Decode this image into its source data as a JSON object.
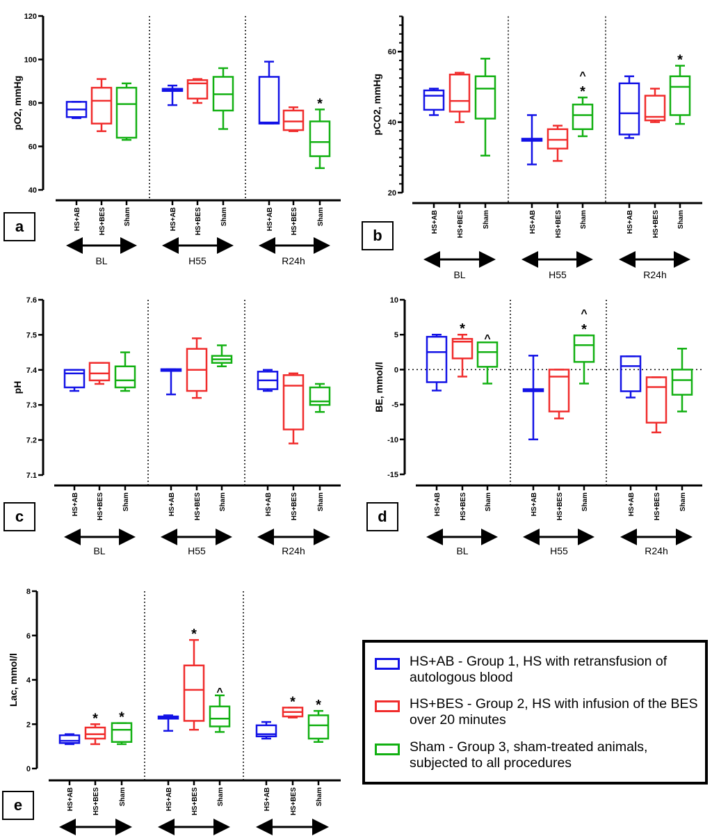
{
  "colors": {
    "HS+AB": "#1212e6",
    "HS+BES": "#f02c2c",
    "Sham": "#12b012",
    "axis": "#000000"
  },
  "chart_data": [
    {
      "type": "box",
      "panel": "a",
      "ylabel": "pO2, mmHg",
      "ylim": [
        40,
        120
      ],
      "yticks": [
        40,
        60,
        80,
        100,
        120
      ],
      "categories": [
        "HS+AB",
        "HS+BES",
        "Sham"
      ],
      "groups": [
        "BL",
        "H55",
        "R24h"
      ],
      "boxes": [
        {
          "group": "BL",
          "category": "HS+AB",
          "stats": [
            73,
            73.5,
            77,
            80.5,
            80.5
          ],
          "mark": ""
        },
        {
          "group": "BL",
          "category": "HS+BES",
          "stats": [
            67,
            70.5,
            81,
            87,
            91
          ],
          "mark": ""
        },
        {
          "group": "BL",
          "category": "Sham",
          "stats": [
            63,
            64,
            79.5,
            87,
            89
          ],
          "mark": ""
        },
        {
          "group": "H55",
          "category": "HS+AB",
          "stats": [
            79,
            85.5,
            86,
            86.5,
            88
          ],
          "mark": ""
        },
        {
          "group": "H55",
          "category": "HS+BES",
          "stats": [
            80,
            82,
            89,
            90.5,
            91
          ],
          "mark": ""
        },
        {
          "group": "H55",
          "category": "Sham",
          "stats": [
            68,
            76.5,
            84,
            92,
            96
          ],
          "mark": ""
        },
        {
          "group": "R24h",
          "category": "HS+AB",
          "stats": [
            70.5,
            70.5,
            71,
            92,
            99
          ],
          "mark": ""
        },
        {
          "group": "R24h",
          "category": "HS+BES",
          "stats": [
            67,
            67.5,
            71.5,
            76.5,
            78
          ],
          "mark": ""
        },
        {
          "group": "R24h",
          "category": "Sham",
          "stats": [
            50,
            55.5,
            62,
            71.5,
            77
          ],
          "mark": "*"
        }
      ]
    },
    {
      "type": "box",
      "panel": "b",
      "ylabel": "pCO2, mmHg",
      "ylim": [
        20,
        70
      ],
      "yticks": [
        20,
        40,
        60
      ],
      "categories": [
        "HS+AB",
        "HS+BES",
        "Sham"
      ],
      "groups": [
        "BL",
        "H55",
        "R24h"
      ],
      "boxes": [
        {
          "group": "BL",
          "category": "HS+AB",
          "stats": [
            42,
            43.5,
            47.5,
            49,
            49.5
          ],
          "mark": ""
        },
        {
          "group": "BL",
          "category": "HS+BES",
          "stats": [
            40,
            43,
            46,
            53.5,
            54
          ],
          "mark": ""
        },
        {
          "group": "BL",
          "category": "Sham",
          "stats": [
            30.5,
            41,
            49.5,
            53,
            58
          ],
          "mark": ""
        },
        {
          "group": "H55",
          "category": "HS+AB",
          "stats": [
            28,
            34.7,
            35,
            35.3,
            42
          ],
          "mark": ""
        },
        {
          "group": "H55",
          "category": "HS+BES",
          "stats": [
            29,
            32.5,
            35,
            38,
            39
          ],
          "mark": ""
        },
        {
          "group": "H55",
          "category": "Sham",
          "stats": [
            36,
            38,
            42,
            45,
            47
          ],
          "mark": "^*"
        },
        {
          "group": "R24h",
          "category": "HS+AB",
          "stats": [
            35.5,
            36.5,
            42.5,
            51,
            53
          ],
          "mark": ""
        },
        {
          "group": "R24h",
          "category": "HS+BES",
          "stats": [
            40,
            40.5,
            41.5,
            47.5,
            49.5
          ],
          "mark": ""
        },
        {
          "group": "R24h",
          "category": "Sham",
          "stats": [
            39.5,
            42,
            50,
            53,
            56
          ],
          "mark": "*"
        }
      ]
    },
    {
      "type": "box",
      "panel": "c",
      "ylabel": "pH",
      "ylim": [
        7.1,
        7.6
      ],
      "yticks": [
        7.1,
        7.2,
        7.3,
        7.4,
        7.5,
        7.6
      ],
      "categories": [
        "HS+AB",
        "HS+BES",
        "Sham"
      ],
      "groups": [
        "BL",
        "H55",
        "R24h"
      ],
      "boxes": [
        {
          "group": "BL",
          "category": "HS+AB",
          "stats": [
            7.34,
            7.35,
            7.39,
            7.4,
            7.4
          ],
          "mark": ""
        },
        {
          "group": "BL",
          "category": "HS+BES",
          "stats": [
            7.36,
            7.37,
            7.39,
            7.42,
            7.42
          ],
          "mark": ""
        },
        {
          "group": "BL",
          "category": "Sham",
          "stats": [
            7.34,
            7.35,
            7.37,
            7.41,
            7.45
          ],
          "mark": ""
        },
        {
          "group": "H55",
          "category": "HS+AB",
          "stats": [
            7.33,
            7.397,
            7.4,
            7.402,
            7.402
          ],
          "mark": ""
        },
        {
          "group": "H55",
          "category": "HS+BES",
          "stats": [
            7.32,
            7.34,
            7.4,
            7.46,
            7.49
          ],
          "mark": ""
        },
        {
          "group": "H55",
          "category": "Sham",
          "stats": [
            7.41,
            7.42,
            7.43,
            7.44,
            7.47
          ],
          "mark": ""
        },
        {
          "group": "R24h",
          "category": "HS+AB",
          "stats": [
            7.34,
            7.345,
            7.37,
            7.395,
            7.4
          ],
          "mark": ""
        },
        {
          "group": "R24h",
          "category": "HS+BES",
          "stats": [
            7.19,
            7.23,
            7.355,
            7.385,
            7.39
          ],
          "mark": ""
        },
        {
          "group": "R24h",
          "category": "Sham",
          "stats": [
            7.28,
            7.3,
            7.31,
            7.35,
            7.36
          ],
          "mark": ""
        }
      ]
    },
    {
      "type": "box",
      "panel": "d",
      "ylabel": "BE, mmol/l",
      "ylim": [
        -15,
        10
      ],
      "yticks": [
        -15,
        -10,
        -5,
        0,
        5,
        10
      ],
      "reference_line": 0,
      "categories": [
        "HS+AB",
        "HS+BES",
        "Sham"
      ],
      "groups": [
        "BL",
        "H55",
        "R24h"
      ],
      "boxes": [
        {
          "group": "BL",
          "category": "HS+AB",
          "stats": [
            -3,
            -1.8,
            2.5,
            4.7,
            5
          ],
          "mark": ""
        },
        {
          "group": "BL",
          "category": "HS+BES",
          "stats": [
            -1,
            1.6,
            4,
            4.4,
            5
          ],
          "mark": "*"
        },
        {
          "group": "BL",
          "category": "Sham",
          "stats": [
            -2,
            0.4,
            2.5,
            3.9,
            3.9
          ],
          "mark": "^"
        },
        {
          "group": "H55",
          "category": "HS+AB",
          "stats": [
            -10,
            -3.1,
            -3,
            -2.8,
            2
          ],
          "mark": ""
        },
        {
          "group": "H55",
          "category": "HS+BES",
          "stats": [
            -7,
            -6,
            -1,
            0,
            0
          ],
          "mark": ""
        },
        {
          "group": "H55",
          "category": "Sham",
          "stats": [
            -2,
            1.1,
            3.5,
            4.9,
            4.9
          ],
          "mark": "^*"
        },
        {
          "group": "R24h",
          "category": "HS+AB",
          "stats": [
            -4,
            -3.1,
            0.5,
            1.9,
            1.9
          ],
          "mark": ""
        },
        {
          "group": "R24h",
          "category": "HS+BES",
          "stats": [
            -9,
            -7.6,
            -2.5,
            -1.1,
            -1.1
          ],
          "mark": ""
        },
        {
          "group": "R24h",
          "category": "Sham",
          "stats": [
            -6,
            -3.6,
            -1.5,
            0,
            3
          ],
          "mark": ""
        }
      ]
    },
    {
      "type": "box",
      "panel": "e",
      "ylabel": "Lac, mmol/l",
      "ylim": [
        0,
        8
      ],
      "yticks": [
        0,
        2,
        4,
        6,
        8
      ],
      "categories": [
        "HS+AB",
        "HS+BES",
        "Sham"
      ],
      "groups": [
        "BL",
        "H55",
        "R24h"
      ],
      "boxes": [
        {
          "group": "BL",
          "category": "HS+AB",
          "stats": [
            1.1,
            1.15,
            1.25,
            1.5,
            1.55
          ],
          "mark": ""
        },
        {
          "group": "BL",
          "category": "HS+BES",
          "stats": [
            1.1,
            1.35,
            1.55,
            1.85,
            2.0
          ],
          "mark": "*"
        },
        {
          "group": "BL",
          "category": "Sham",
          "stats": [
            1.1,
            1.2,
            1.75,
            2.05,
            2.05
          ],
          "mark": "*"
        },
        {
          "group": "H55",
          "category": "HS+AB",
          "stats": [
            1.7,
            2.25,
            2.3,
            2.35,
            2.4
          ],
          "mark": ""
        },
        {
          "group": "H55",
          "category": "HS+BES",
          "stats": [
            1.75,
            2.15,
            3.55,
            4.65,
            5.8
          ],
          "mark": "*"
        },
        {
          "group": "H55",
          "category": "Sham",
          "stats": [
            1.65,
            1.9,
            2.25,
            2.8,
            3.3
          ],
          "mark": "^"
        },
        {
          "group": "R24h",
          "category": "HS+AB",
          "stats": [
            1.35,
            1.45,
            1.55,
            1.95,
            2.1
          ],
          "mark": ""
        },
        {
          "group": "R24h",
          "category": "HS+BES",
          "stats": [
            2.3,
            2.35,
            2.55,
            2.75,
            2.75
          ],
          "mark": "*"
        },
        {
          "group": "R24h",
          "category": "Sham",
          "stats": [
            1.2,
            1.35,
            1.95,
            2.4,
            2.6
          ],
          "mark": "*"
        }
      ]
    }
  ],
  "legend": {
    "items": [
      {
        "key": "HS+AB",
        "text": "HS+AB - Group 1, HS with retransfusion of autologous blood"
      },
      {
        "key": "HS+BES",
        "text": "HS+BES - Group 2, HS with infusion of the BES over 20 minutes"
      },
      {
        "key": "Sham",
        "text": "Sham - Group 3, sham-treated animals, subjected to all procedures"
      }
    ]
  }
}
